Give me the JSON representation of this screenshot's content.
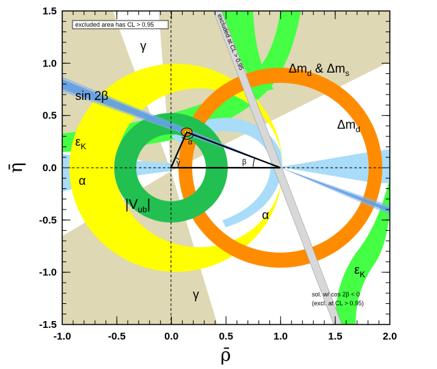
{
  "chart_data": {
    "type": "scatter",
    "xlabel": "ρ̄",
    "ylabel": "η̄",
    "xlim": [
      -1.0,
      2.0
    ],
    "ylim": [
      -1.5,
      1.5
    ],
    "xticks": [
      -1.0,
      -0.5,
      0.0,
      0.5,
      1.0,
      1.5,
      2.0
    ],
    "xtick_labels": [
      "-1.0",
      "-0.5",
      "0.0",
      "0.5",
      "1.0",
      "1.5",
      "2.0"
    ],
    "yticks": [
      -1.5,
      -1.0,
      -0.5,
      0.0,
      0.5,
      1.0,
      1.5
    ],
    "ytick_labels": [
      "-1.5",
      "-1.0",
      "-0.5",
      "0.0",
      "0.5",
      "1.0",
      "1.5"
    ],
    "grid": false,
    "apex": {
      "rho": 0.14,
      "eta": 0.34
    },
    "triangle": [
      {
        "rho": 0.0,
        "eta": 0.0
      },
      {
        "rho": 1.0,
        "eta": 0.0
      },
      {
        "rho": 0.14,
        "eta": 0.34
      }
    ],
    "constraints": [
      {
        "name": "Vub",
        "shape": "annulus",
        "center": [
          0.0,
          0.0
        ],
        "r_inner": 0.32,
        "r_outer": 0.52,
        "color": "#22c050"
      },
      {
        "name": "dmd_band",
        "shape": "annulus",
        "center": [
          1.0,
          0.0
        ],
        "r_inner": 0.76,
        "r_outer": 0.98,
        "color": "#ffff00"
      },
      {
        "name": "dmd_dms",
        "shape": "annulus",
        "center": [
          1.0,
          0.0
        ],
        "r_inner": 0.8,
        "r_outer": 0.93,
        "color": "#ff8c00"
      },
      {
        "name": "sin2beta",
        "shape": "wedge",
        "angle_deg": -21.2,
        "half_width_deg": 1.5,
        "color": "#3a7fd5"
      },
      {
        "name": "alpha",
        "shape": "region",
        "color": "#a8dcf8"
      },
      {
        "name": "epsK",
        "shape": "hyperbola_band",
        "color": "#44ff44"
      },
      {
        "name": "gamma",
        "shape": "wedge",
        "color": "#ded8b4"
      }
    ],
    "annotations": {
      "excluded_box": "excluded area has CL > 0.95",
      "excluded_strip": "excluded at CL > 0.95",
      "sol_note_1": "sol. w/ cos 2β < 0",
      "sol_note_2": "(excl. at CL > 0.95)",
      "labels": [
        {
          "text": "γ"
        },
        {
          "text": "γ"
        },
        {
          "text": "sin 2β"
        },
        {
          "text": "ε",
          "sub": "K"
        },
        {
          "text": "ε",
          "sub": "K"
        },
        {
          "text": "α"
        },
        {
          "text": "α"
        },
        {
          "text": "V",
          "sub": "ub"
        },
        {
          "text": "Δm",
          "sub": "d"
        },
        {
          "text": "Δm",
          "sub": "s"
        },
        {
          "text": "α"
        },
        {
          "text": "β"
        },
        {
          "text": "γ"
        }
      ]
    }
  },
  "colors": {
    "gamma": "#ded8b4",
    "epsK": "#44ff44",
    "alpha": "#a8dcf8",
    "vub": "#22c050",
    "dmd": "#ffff00",
    "dms": "#ff8c00",
    "sin2b": "#3a7fd5",
    "strip": "#d8d8d8"
  }
}
